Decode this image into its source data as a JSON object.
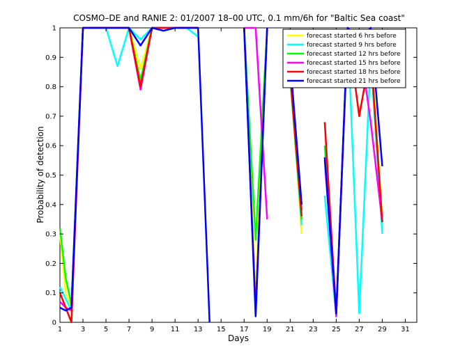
{
  "chart_data": {
    "type": "line",
    "title": "COSMO–DE and RANIE 2: 01/2007 18–00 UTC, 0.1 mm/6h for \"Baltic Sea coast\"",
    "xlabel": "Days",
    "ylabel": "Probability of detection",
    "xlim": [
      1,
      32
    ],
    "ylim": [
      0,
      1
    ],
    "x_ticks": [
      1,
      3,
      5,
      7,
      9,
      11,
      13,
      15,
      17,
      19,
      21,
      23,
      25,
      27,
      29,
      31
    ],
    "y_ticks": [
      0,
      0.1,
      0.2,
      0.3,
      0.4,
      0.5,
      0.6,
      0.7,
      0.8,
      0.9,
      1
    ],
    "y_tick_labels": [
      "0",
      "0.1",
      "0.2",
      "0.3",
      "0.4",
      "0.5",
      "0.6",
      "0.7",
      "0.8",
      "0.9",
      "1"
    ],
    "grid": false,
    "legend_position": "top-right",
    "x": [
      1,
      1.5,
      2,
      3,
      4,
      5,
      6,
      7,
      8,
      9,
      10,
      11,
      12,
      13,
      14,
      15,
      16,
      17,
      18,
      19,
      20,
      21,
      22,
      23,
      24,
      25,
      26,
      27,
      28,
      29
    ],
    "series": [
      {
        "name": "forecast started 6 hrs before",
        "color": "#ffff00",
        "values": [
          0.3,
          0.1,
          0.05,
          1,
          1,
          1,
          1,
          1,
          0.86,
          1,
          1,
          1,
          1,
          1,
          null,
          null,
          null,
          1,
          0.1,
          1,
          null,
          0.85,
          0.3,
          null,
          null,
          0.02,
          1,
          0.97,
          0.95,
          0.35
        ]
      },
      {
        "name": "forecast started 9 hrs before",
        "color": "#00ffff",
        "values": [
          0.12,
          0.08,
          0.04,
          1,
          1,
          1,
          0.87,
          1,
          0.96,
          1,
          1,
          1,
          1,
          0.97,
          null,
          null,
          null,
          1,
          0.03,
          1,
          null,
          0.84,
          0.33,
          null,
          0.43,
          0.02,
          1,
          0.03,
          0.9,
          0.3
        ]
      },
      {
        "name": "forecast started 12 hrs before",
        "color": "#00ff00",
        "values": [
          0.32,
          0.15,
          0.06,
          1,
          1,
          1,
          1,
          1,
          0.82,
          1,
          1,
          1,
          1,
          1,
          null,
          null,
          null,
          1,
          0.28,
          1,
          null,
          0.83,
          0.35,
          null,
          0.6,
          0.03,
          0.98,
          0.9,
          0.91,
          0.34
        ]
      },
      {
        "name": "forecast started 15 hrs before",
        "color": "#ff00ff",
        "values": [
          0.07,
          0.05,
          0.04,
          1,
          1,
          1,
          1,
          1,
          0.79,
          1,
          1,
          1,
          1,
          1,
          null,
          null,
          null,
          1,
          1,
          0.35,
          null,
          0.87,
          0.38,
          null,
          0.55,
          0.02,
          1,
          0.96,
          0.68,
          0.34
        ]
      },
      {
        "name": "forecast started 18 hrs before",
        "color": "#ff0000",
        "values": [
          0.1,
          0.05,
          0,
          1,
          1,
          1,
          1,
          1,
          0.8,
          1,
          1,
          1,
          1,
          1,
          null,
          null,
          null,
          1,
          0.04,
          1,
          null,
          0.84,
          0.36,
          null,
          0.68,
          0.03,
          1,
          0.7,
          0.92,
          0.34
        ]
      },
      {
        "name": "forecast started 21 hrs before",
        "color": "#0000ff",
        "values": [
          0.05,
          0.04,
          0.05,
          1,
          1,
          1,
          1,
          1,
          0.94,
          1,
          0.99,
          1,
          1,
          1,
          0,
          null,
          null,
          1,
          0.02,
          1,
          null,
          0.89,
          0.4,
          null,
          0.56,
          0.03,
          1,
          0.96,
          1,
          0.53
        ]
      }
    ]
  }
}
